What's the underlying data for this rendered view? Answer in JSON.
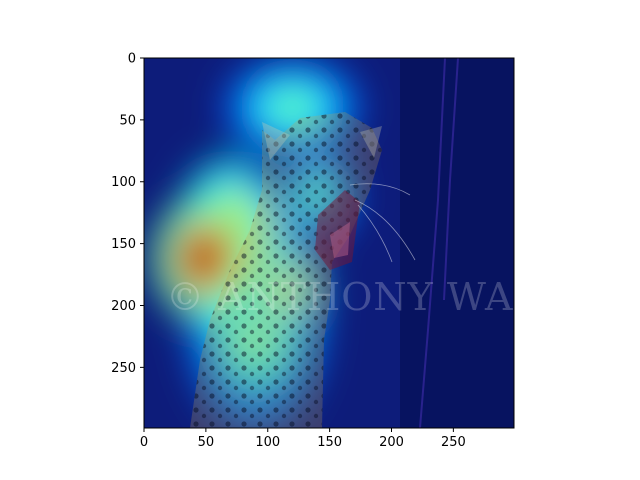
{
  "chart_data": {
    "type": "heatmap",
    "title": "",
    "xlabel": "",
    "ylabel": "",
    "xlim": [
      0,
      299
    ],
    "ylim": [
      299,
      0
    ],
    "x_ticks": [
      0,
      50,
      100,
      150,
      200,
      250
    ],
    "y_ticks": [
      0,
      50,
      100,
      150,
      200,
      250
    ],
    "x_tick_labels": [
      "0",
      "50",
      "100",
      "150",
      "200",
      "250"
    ],
    "y_tick_labels": [
      "0",
      "50",
      "100",
      "150",
      "200",
      "250"
    ],
    "colormap": "jet",
    "grid": false,
    "image_subject": "leopard, mouth open",
    "watermark_text": "© ANTHONY WARREN",
    "heat_regions": [
      {
        "x": 48,
        "y": 162,
        "rx": 42,
        "ry": 50,
        "intensity": 1.0
      },
      {
        "x": 70,
        "y": 150,
        "rx": 45,
        "ry": 70,
        "intensity": 0.8
      },
      {
        "x": 105,
        "y": 185,
        "rx": 40,
        "ry": 35,
        "intensity": 0.75
      },
      {
        "x": 90,
        "y": 210,
        "rx": 55,
        "ry": 90,
        "intensity": 0.55
      },
      {
        "x": 120,
        "y": 40,
        "rx": 55,
        "ry": 40,
        "intensity": 0.5
      },
      {
        "x": 140,
        "y": 110,
        "rx": 30,
        "ry": 40,
        "intensity": 0.45
      }
    ]
  }
}
